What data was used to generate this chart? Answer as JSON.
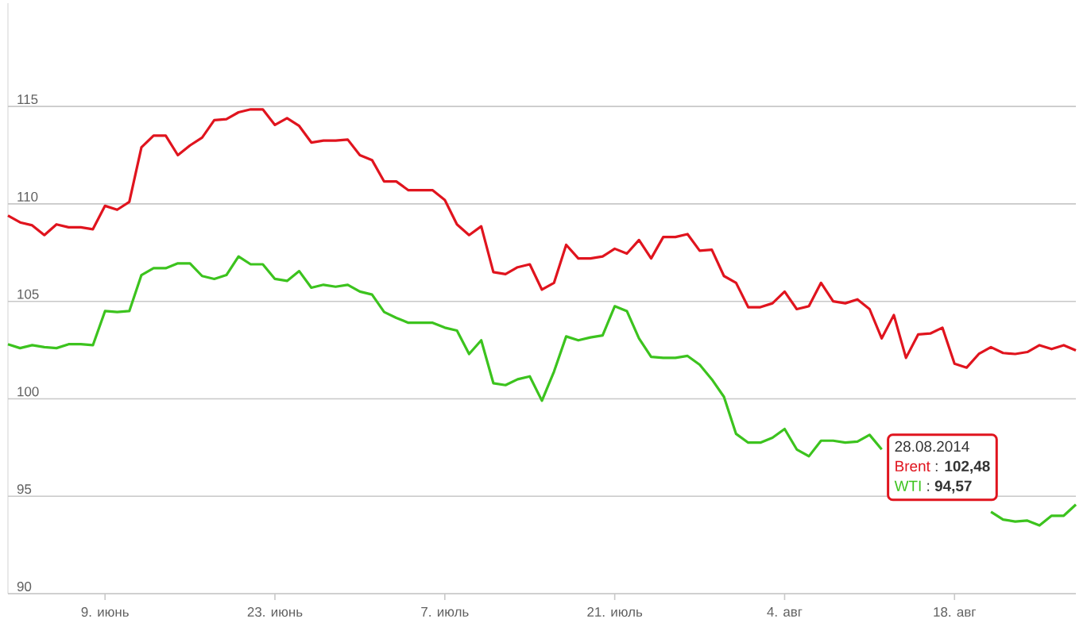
{
  "chart_data": {
    "type": "line",
    "grid": "y",
    "marker": "none",
    "line_style": "solid",
    "x": [
      "2014-06-01",
      "2014-06-02",
      "2014-06-03",
      "2014-06-04",
      "2014-06-05",
      "2014-06-06",
      "2014-06-07",
      "2014-06-08",
      "2014-06-09",
      "2014-06-10",
      "2014-06-11",
      "2014-06-12",
      "2014-06-13",
      "2014-06-14",
      "2014-06-15",
      "2014-06-16",
      "2014-06-17",
      "2014-06-18",
      "2014-06-19",
      "2014-06-20",
      "2014-06-21",
      "2014-06-22",
      "2014-06-23",
      "2014-06-24",
      "2014-06-25",
      "2014-06-26",
      "2014-06-27",
      "2014-06-28",
      "2014-06-29",
      "2014-06-30",
      "2014-07-01",
      "2014-07-02",
      "2014-07-03",
      "2014-07-04",
      "2014-07-05",
      "2014-07-06",
      "2014-07-07",
      "2014-07-08",
      "2014-07-09",
      "2014-07-10",
      "2014-07-11",
      "2014-07-12",
      "2014-07-13",
      "2014-07-14",
      "2014-07-15",
      "2014-07-16",
      "2014-07-17",
      "2014-07-18",
      "2014-07-19",
      "2014-07-20",
      "2014-07-21",
      "2014-07-22",
      "2014-07-23",
      "2014-07-24",
      "2014-07-25",
      "2014-07-26",
      "2014-07-27",
      "2014-07-28",
      "2014-07-29",
      "2014-07-30",
      "2014-07-31",
      "2014-08-01",
      "2014-08-02",
      "2014-08-03",
      "2014-08-04",
      "2014-08-05",
      "2014-08-06",
      "2014-08-07",
      "2014-08-08",
      "2014-08-09",
      "2014-08-10",
      "2014-08-11",
      "2014-08-12",
      "2014-08-13",
      "2014-08-14",
      "2014-08-15",
      "2014-08-16",
      "2014-08-17",
      "2014-08-18",
      "2014-08-19",
      "2014-08-20",
      "2014-08-21",
      "2014-08-22",
      "2014-08-23",
      "2014-08-24",
      "2014-08-25",
      "2014-08-26",
      "2014-08-27",
      "2014-08-28"
    ],
    "series": [
      {
        "name": "Brent",
        "color": "#e0141e",
        "values": [
          109.4,
          109.05,
          108.9,
          108.4,
          108.95,
          108.8,
          108.8,
          108.7,
          109.9,
          109.7,
          110.1,
          112.9,
          113.5,
          113.5,
          112.5,
          113.0,
          113.4,
          114.3,
          114.35,
          114.7,
          114.85,
          114.85,
          114.05,
          114.4,
          114.0,
          113.15,
          113.25,
          113.25,
          113.3,
          112.5,
          112.25,
          111.15,
          111.15,
          110.7,
          110.7,
          110.7,
          110.2,
          108.95,
          108.4,
          108.85,
          106.5,
          106.4,
          106.75,
          106.9,
          105.6,
          105.95,
          107.9,
          107.2,
          107.2,
          107.3,
          107.7,
          107.45,
          108.15,
          107.2,
          108.3,
          108.3,
          108.45,
          107.6,
          107.65,
          106.3,
          105.95,
          104.7,
          104.7,
          104.9,
          105.5,
          104.6,
          104.75,
          105.95,
          105.0,
          104.9,
          105.1,
          104.6,
          103.1,
          104.3,
          102.1,
          103.3,
          103.35,
          103.65,
          101.8,
          101.6,
          102.3,
          102.65,
          102.35,
          102.3,
          102.4,
          102.75,
          102.55,
          102.75,
          102.48
        ]
      },
      {
        "name": "WTI",
        "color": "#3cc31e",
        "values": [
          102.8,
          102.6,
          102.75,
          102.65,
          102.6,
          102.8,
          102.8,
          102.75,
          104.5,
          104.45,
          104.5,
          106.35,
          106.7,
          106.7,
          106.95,
          106.95,
          106.3,
          106.15,
          106.35,
          107.3,
          106.9,
          106.9,
          106.15,
          106.05,
          106.55,
          105.7,
          105.85,
          105.75,
          105.85,
          105.5,
          105.35,
          104.45,
          104.15,
          103.9,
          103.9,
          103.9,
          103.65,
          103.5,
          102.3,
          103.0,
          100.8,
          100.7,
          101.0,
          101.15,
          99.9,
          101.4,
          103.2,
          103.0,
          103.15,
          103.25,
          104.75,
          104.5,
          103.1,
          102.15,
          102.1,
          102.1,
          102.2,
          101.75,
          101.0,
          100.1,
          98.2,
          97.75,
          97.75,
          98.0,
          98.45,
          97.4,
          97.05,
          97.85,
          97.85,
          97.75,
          97.8,
          98.15,
          97.4,
          null,
          null,
          null,
          null,
          null,
          null,
          null,
          null,
          94.2,
          93.8,
          93.7,
          93.75,
          93.5,
          94.0,
          94.0,
          94.57
        ]
      }
    ],
    "xlim": [
      "2014-06-01",
      "2014-08-28"
    ],
    "xticks": [
      {
        "value": "2014-06-09",
        "label": "9. июнь"
      },
      {
        "value": "2014-06-23",
        "label": "23. июнь"
      },
      {
        "value": "2014-07-07",
        "label": "7. июль"
      },
      {
        "value": "2014-07-21",
        "label": "21. июль"
      },
      {
        "value": "2014-08-04",
        "label": "4. авг"
      },
      {
        "value": "2014-08-18",
        "label": "18. авг"
      }
    ],
    "ylim": [
      90,
      120.3
    ],
    "yticks": [
      90,
      95,
      100,
      105,
      110,
      115
    ],
    "annotations": [
      "28.08.2014",
      ": **102,48**",
      ": **94,57**"
    ]
  }
}
